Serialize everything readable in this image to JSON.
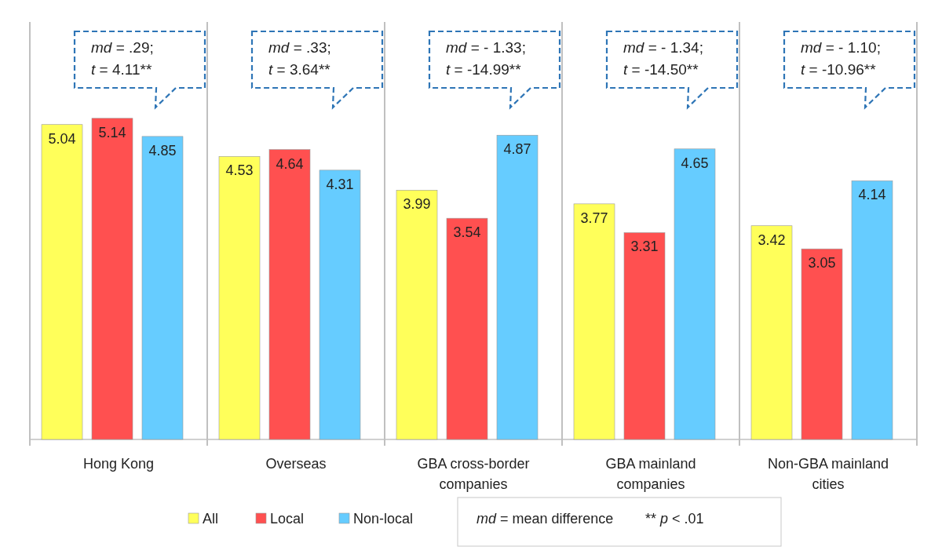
{
  "chart_data": {
    "type": "bar",
    "categories": [
      "Hong Kong",
      "Overseas",
      "GBA cross-border companies",
      "GBA mainland companies",
      "Non-GBA mainland cities"
    ],
    "series": [
      {
        "name": "All",
        "color": "#ffff5a",
        "values": [
          5.04,
          4.53,
          3.99,
          3.77,
          3.42
        ]
      },
      {
        "name": "Local",
        "color": "#ff5050",
        "values": [
          5.14,
          4.64,
          3.54,
          3.31,
          3.05
        ]
      },
      {
        "name": "Non-local",
        "color": "#66ccff",
        "values": [
          4.85,
          4.31,
          4.87,
          4.65,
          4.14
        ]
      }
    ],
    "data_labels": true,
    "grid": "x",
    "legend": "bottom",
    "annotations": [
      "md = .29;",
      "t = 4.11**",
      "md = .33;",
      "t = 3.64**",
      "md = - 1.33;",
      "t = -14.99**",
      "md = - 1.34;",
      "t = -14.50**",
      "md = - 1.10;",
      "t = -10.96**",
      "md = mean difference",
      "** p < .01"
    ]
  }
}
